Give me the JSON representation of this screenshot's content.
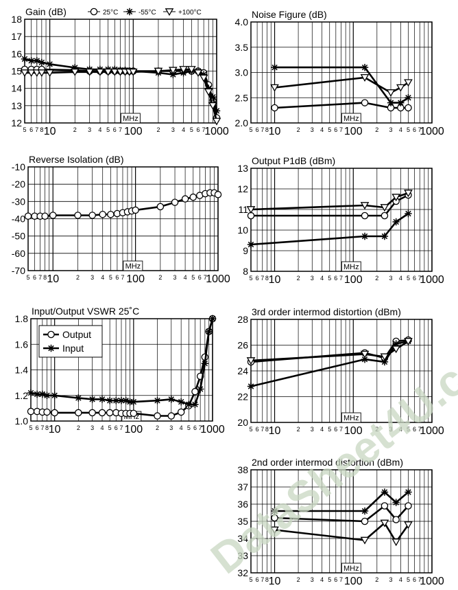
{
  "watermark": "DataSheet4U.com",
  "colors": {
    "ink": "#000000",
    "grid": "#000000",
    "watermark": "#bccdb3"
  },
  "x_axis": {
    "scale": "log",
    "range_mhz": [
      5,
      1000
    ],
    "unit_label": "MHz",
    "tick_labels": [
      {
        "v": 5,
        "t": "5"
      },
      {
        "v": 6,
        "t": "6"
      },
      {
        "v": 7,
        "t": "7"
      },
      {
        "v": 8,
        "t": "8"
      },
      {
        "v": 10,
        "t": "10",
        "big": true
      },
      {
        "v": 20,
        "t": "2"
      },
      {
        "v": 30,
        "t": "3"
      },
      {
        "v": 40,
        "t": "4"
      },
      {
        "v": 50,
        "t": "5"
      },
      {
        "v": 60,
        "t": "6"
      },
      {
        "v": 70,
        "t": "7"
      },
      {
        "v": 100,
        "t": "100",
        "big": true
      },
      {
        "v": 200,
        "t": "2"
      },
      {
        "v": 300,
        "t": "3"
      },
      {
        "v": 400,
        "t": "4"
      },
      {
        "v": 500,
        "t": "5"
      },
      {
        "v": 600,
        "t": "6"
      },
      {
        "v": 700,
        "t": "7"
      },
      {
        "v": 1000,
        "t": "1000",
        "big": true
      }
    ]
  },
  "chart_data": [
    {
      "id": "gain",
      "type": "line",
      "title": "Gain (dB)",
      "ylim": [
        12,
        18
      ],
      "yticks": [
        "12",
        "13",
        "14",
        "15",
        "16",
        "17",
        "18"
      ],
      "legend": [
        {
          "marker": "circle",
          "label": "25°C"
        },
        {
          "marker": "star",
          "label": "-55°C"
        },
        {
          "marker": "triangle",
          "label": "+100°C"
        }
      ],
      "series": [
        {
          "name": "25°C",
          "marker": "circle",
          "x": [
            5,
            6,
            7,
            8,
            20,
            30,
            40,
            50,
            60,
            70,
            80,
            90,
            100,
            200,
            300,
            400,
            500,
            600,
            700,
            800,
            900,
            1000
          ],
          "y": [
            15.1,
            15.1,
            15.1,
            15.1,
            15.05,
            15.0,
            15.0,
            15.0,
            15.0,
            15.0,
            15.0,
            15.0,
            15.0,
            15.0,
            15.0,
            15.0,
            15.0,
            15.0,
            14.9,
            14.2,
            13.3,
            12.3
          ]
        },
        {
          "name": "-55°C",
          "marker": "star",
          "x": [
            5,
            6,
            7,
            8,
            10,
            20,
            30,
            40,
            50,
            60,
            70,
            80,
            90,
            100,
            200,
            300,
            400,
            500,
            600,
            700,
            800,
            900,
            1000
          ],
          "y": [
            15.7,
            15.6,
            15.6,
            15.5,
            15.4,
            15.2,
            15.1,
            15.1,
            15.1,
            15.1,
            15.05,
            15.05,
            15.0,
            15.0,
            14.9,
            14.8,
            14.9,
            15.0,
            15.0,
            14.8,
            14.0,
            13.5,
            12.7
          ]
        },
        {
          "name": "+100°C",
          "marker": "triangle",
          "x": [
            5,
            6,
            7,
            8,
            10,
            20,
            30,
            40,
            50,
            60,
            70,
            80,
            90,
            100,
            200,
            300,
            400,
            500,
            600,
            700,
            800,
            900,
            1000
          ],
          "y": [
            14.9,
            14.9,
            14.9,
            14.9,
            14.9,
            14.95,
            14.95,
            14.95,
            14.95,
            14.95,
            14.95,
            14.95,
            14.95,
            14.95,
            15.0,
            15.05,
            15.1,
            15.1,
            14.9,
            14.6,
            13.8,
            13.0,
            12.1
          ]
        }
      ]
    },
    {
      "id": "noise",
      "type": "line",
      "title": "Noise Figure (dB)",
      "ylim": [
        2.0,
        4.0
      ],
      "yticks": [
        "2.0",
        "2.5",
        "3.0",
        "3.5",
        "4.0"
      ],
      "series": [
        {
          "name": "25°C",
          "marker": "circle",
          "x": [
            10,
            140,
            300,
            400,
            500
          ],
          "y": [
            2.3,
            2.4,
            2.3,
            2.3,
            2.3
          ]
        },
        {
          "name": "-55°C",
          "marker": "star",
          "x": [
            10,
            140,
            300,
            400,
            500
          ],
          "y": [
            3.1,
            3.1,
            2.4,
            2.4,
            2.5
          ]
        },
        {
          "name": "+100°C",
          "marker": "triangle",
          "x": [
            10,
            140,
            300,
            400,
            500
          ],
          "y": [
            2.7,
            2.9,
            2.6,
            2.7,
            2.8
          ]
        }
      ]
    },
    {
      "id": "reverse",
      "type": "line",
      "title": "Reverse Isolation (dB)",
      "ylim": [
        -70,
        -10
      ],
      "yticks": [
        "-70",
        "-60",
        "-50",
        "-40",
        "-30",
        "-20",
        "-10"
      ],
      "series": [
        {
          "name": "25°C",
          "marker": "circle",
          "x": [
            5,
            6,
            7,
            8,
            10,
            20,
            30,
            40,
            50,
            60,
            70,
            80,
            90,
            100,
            200,
            300,
            400,
            500,
            600,
            700,
            800,
            900,
            1000
          ],
          "y": [
            -38.5,
            -38.5,
            -38.5,
            -38.5,
            -38.0,
            -38.0,
            -38.0,
            -37.5,
            -37.5,
            -37.0,
            -36.5,
            -36.0,
            -35.5,
            -35.0,
            -33.0,
            -30.5,
            -28.5,
            -27.5,
            -26.5,
            -25.5,
            -25.0,
            -25.0,
            -26.0
          ]
        }
      ]
    },
    {
      "id": "p1db",
      "type": "line",
      "title": "Output P1dB (dBm)",
      "ylim": [
        8,
        13
      ],
      "yticks": [
        "8",
        "9",
        "10",
        "11",
        "12",
        "13"
      ],
      "series": [
        {
          "name": "25°C",
          "marker": "circle",
          "x": [
            5,
            140,
            250,
            350,
            500
          ],
          "y": [
            10.7,
            10.7,
            10.7,
            11.4,
            11.7
          ]
        },
        {
          "name": "-55°C",
          "marker": "star",
          "x": [
            5,
            140,
            250,
            350,
            500
          ],
          "y": [
            9.3,
            9.7,
            9.7,
            10.4,
            10.8
          ]
        },
        {
          "name": "+100°C",
          "marker": "triangle",
          "x": [
            5,
            140,
            250,
            350,
            500
          ],
          "y": [
            11.0,
            11.2,
            11.1,
            11.6,
            11.8
          ]
        }
      ]
    },
    {
      "id": "vswr",
      "type": "line",
      "title": "Input/Output VSWR 25˚C",
      "ylim": [
        1.0,
        1.8
      ],
      "yticks": [
        "1.0",
        "1.2",
        "1.4",
        "1.6",
        "1.8"
      ],
      "legend": [
        {
          "marker": "circle",
          "label": "Output"
        },
        {
          "marker": "star",
          "label": "Input"
        }
      ],
      "series": [
        {
          "name": "Output",
          "marker": "circle",
          "x": [
            5,
            6,
            7,
            8,
            10,
            20,
            30,
            40,
            50,
            60,
            70,
            80,
            90,
            100,
            200,
            300,
            400,
            500,
            600,
            700,
            800,
            900,
            1000
          ],
          "y": [
            1.075,
            1.075,
            1.07,
            1.07,
            1.065,
            1.065,
            1.065,
            1.065,
            1.065,
            1.065,
            1.06,
            1.06,
            1.06,
            1.06,
            1.04,
            1.04,
            1.07,
            1.12,
            1.23,
            1.35,
            1.5,
            1.7,
            1.8
          ]
        },
        {
          "name": "Input",
          "marker": "star",
          "x": [
            5,
            6,
            7,
            8,
            10,
            20,
            30,
            40,
            50,
            60,
            70,
            80,
            90,
            100,
            200,
            300,
            400,
            500,
            600,
            700,
            800,
            900,
            1000
          ],
          "y": [
            1.22,
            1.21,
            1.21,
            1.2,
            1.2,
            1.18,
            1.17,
            1.17,
            1.16,
            1.16,
            1.16,
            1.16,
            1.15,
            1.15,
            1.16,
            1.17,
            1.15,
            1.13,
            1.13,
            1.25,
            1.45,
            1.7,
            1.8
          ]
        }
      ]
    },
    {
      "id": "ip3",
      "type": "line",
      "title": "3rd order intermod distortion (dBm)",
      "ylim": [
        20,
        28
      ],
      "yticks": [
        "20",
        "22",
        "24",
        "26",
        "28"
      ],
      "series": [
        {
          "name": "25°C",
          "marker": "circle",
          "x": [
            5,
            140,
            250,
            350,
            500
          ],
          "y": [
            24.7,
            25.4,
            25.0,
            26.3,
            26.4
          ]
        },
        {
          "name": "-55°C",
          "marker": "star",
          "x": [
            5,
            140,
            250,
            350,
            500
          ],
          "y": [
            22.8,
            24.9,
            24.7,
            26.1,
            26.3
          ]
        },
        {
          "name": "+100°C",
          "marker": "triangle",
          "x": [
            5,
            140,
            250,
            350,
            500
          ],
          "y": [
            24.8,
            25.3,
            25.1,
            25.7,
            26.3
          ]
        }
      ]
    },
    {
      "id": "ip2",
      "type": "line",
      "title": "2nd order intermod distortion (dBm)",
      "ylim": [
        32,
        38
      ],
      "yticks": [
        "32",
        "33",
        "34",
        "35",
        "36",
        "37",
        "38"
      ],
      "series": [
        {
          "name": "25°C",
          "marker": "circle",
          "x": [
            10,
            140,
            250,
            350,
            500
          ],
          "y": [
            35.2,
            35.0,
            35.9,
            35.1,
            35.9
          ]
        },
        {
          "name": "-55°C",
          "marker": "star",
          "x": [
            10,
            140,
            250,
            350,
            500
          ],
          "y": [
            35.6,
            35.6,
            36.7,
            36.1,
            36.7
          ]
        },
        {
          "name": "+100°C",
          "marker": "triangle",
          "x": [
            10,
            140,
            250,
            350,
            500
          ],
          "y": [
            34.5,
            33.9,
            34.9,
            33.8,
            34.8
          ]
        }
      ]
    }
  ]
}
